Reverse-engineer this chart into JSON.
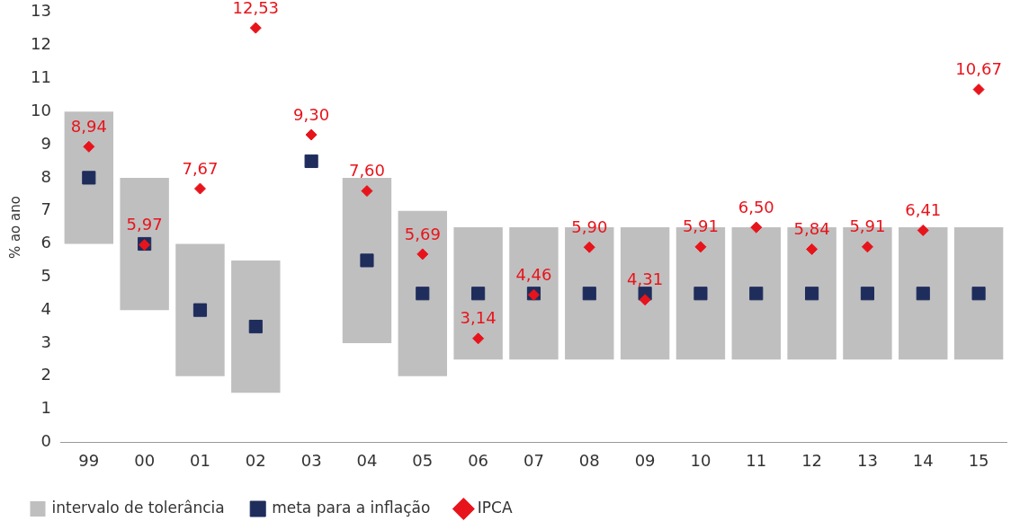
{
  "chart_data": {
    "type": "bar",
    "ylabel": "% ao ano",
    "categories": [
      "99",
      "00",
      "01",
      "02",
      "03",
      "04",
      "05",
      "06",
      "07",
      "08",
      "09",
      "10",
      "11",
      "12",
      "13",
      "14",
      "15"
    ],
    "ylim": [
      0,
      13
    ],
    "yticks": [
      0,
      1,
      2,
      3,
      4,
      5,
      6,
      7,
      8,
      9,
      10,
      11,
      12,
      13
    ],
    "grid": false,
    "legend": "bottom",
    "series": [
      {
        "name": "intervalo de tolerância",
        "color": "#bfbfbf",
        "base": [
          6,
          4,
          2,
          1.5,
          null,
          3,
          2,
          2.5,
          2.5,
          2.5,
          2.5,
          2.5,
          2.5,
          2.5,
          2.5,
          2.5,
          2.5
        ],
        "values": [
          4,
          4,
          4,
          4,
          null,
          5,
          5,
          4,
          4,
          4,
          4,
          4,
          4,
          4,
          4,
          4,
          4
        ]
      },
      {
        "name": "meta para a inflação",
        "type": "scatter",
        "marker": "square",
        "color": "#1f2d5c",
        "values": [
          8,
          6,
          4,
          3.5,
          8.5,
          5.5,
          4.5,
          4.5,
          4.5,
          4.5,
          4.5,
          4.5,
          4.5,
          4.5,
          4.5,
          4.5,
          4.5
        ]
      },
      {
        "name": "IPCA",
        "type": "scatter",
        "marker": "diamond",
        "color": "#e8141b",
        "values": [
          8.94,
          5.97,
          7.67,
          12.53,
          9.3,
          7.6,
          5.69,
          3.14,
          4.46,
          5.9,
          4.31,
          5.91,
          6.5,
          5.84,
          5.91,
          6.41,
          10.67
        ],
        "value_labels": [
          "8,94",
          "5,97",
          "7,67",
          "12,53",
          "9,30",
          "7,60",
          "5,69",
          "3,14",
          "4,46",
          "5,90",
          "4,31",
          "5,91",
          "6,50",
          "5,84",
          "5,91",
          "6,41",
          "10,67"
        ]
      }
    ]
  }
}
